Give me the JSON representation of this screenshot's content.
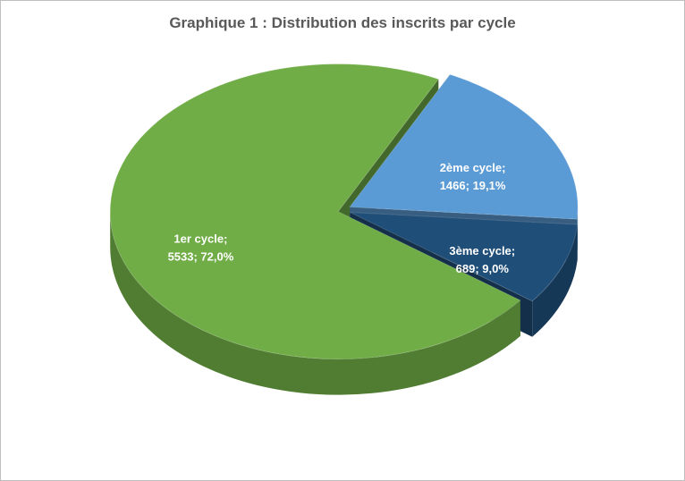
{
  "chart_data": {
    "type": "pie3d",
    "title": "Graphique 1 : Distribution des inscrits par cycle",
    "categories": [
      "1er cycle;",
      "2ème cycle;",
      "3ème cycle;"
    ],
    "values": [
      5533,
      1466,
      689
    ],
    "value_labels": [
      "5533; 72,0%",
      "1466; 19,1%",
      "689; 9,0%"
    ],
    "colors": [
      "#70ad47",
      "#5b9bd5",
      "#1f4e79"
    ]
  }
}
